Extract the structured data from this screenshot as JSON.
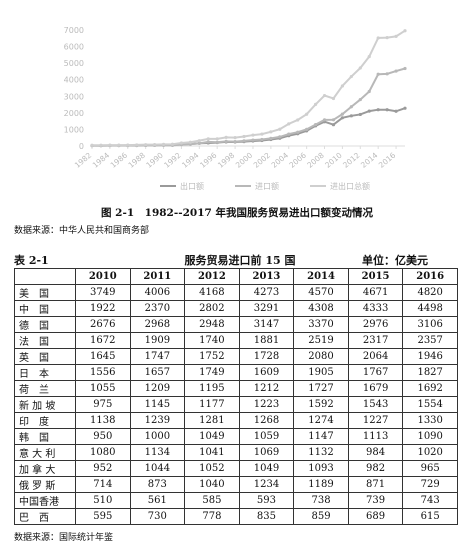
{
  "chart_data": {
    "type": "line",
    "x": [
      1982,
      1983,
      1984,
      1985,
      1986,
      1987,
      1988,
      1989,
      1990,
      1991,
      1992,
      1993,
      1994,
      1995,
      1996,
      1997,
      1998,
      1999,
      2000,
      2001,
      2002,
      2003,
      2004,
      2005,
      2006,
      2007,
      2008,
      2009,
      2010,
      2011,
      2012,
      2013,
      2014,
      2015,
      2016,
      2017
    ],
    "series": [
      {
        "name": "出口额",
        "color": "#9a9a9a",
        "values": [
          25,
          25,
          28,
          29,
          36,
          42,
          47,
          45,
          57,
          69,
          91,
          110,
          164,
          184,
          206,
          245,
          239,
          262,
          301,
          329,
          394,
          464,
          621,
          739,
          914,
          1217,
          1465,
          1286,
          1702,
          1821,
          1904,
          2106,
          2191,
          2186,
          2095,
          2281
        ]
      },
      {
        "name": "进口额",
        "color": "#b8b8b8",
        "values": [
          19,
          18,
          26,
          23,
          20,
          23,
          33,
          36,
          41,
          39,
          92,
          116,
          158,
          246,
          224,
          277,
          265,
          310,
          359,
          390,
          461,
          549,
          716,
          832,
          1003,
          1293,
          1580,
          1581,
          1922,
          2370,
          2801,
          3291,
          4329,
          4355,
          4521,
          4676
        ]
      },
      {
        "name": "进出口总额",
        "color": "#cfcfcf",
        "values": [
          44,
          43,
          54,
          52,
          56,
          65,
          80,
          81,
          98,
          108,
          183,
          226,
          322,
          430,
          430,
          522,
          504,
          572,
          660,
          719,
          855,
          1013,
          1337,
          1571,
          1917,
          2510,
          3045,
          2867,
          3624,
          4191,
          4705,
          5397,
          6520,
          6541,
          6616,
          6957
        ]
      }
    ],
    "xlim": [
      1982,
      2017
    ],
    "xticks": [
      1982,
      1984,
      1986,
      1988,
      1990,
      1992,
      1994,
      1996,
      1998,
      2000,
      2002,
      2004,
      2006,
      2008,
      2010,
      2012,
      2014,
      2016
    ],
    "ylim": [
      0,
      7000
    ],
    "yticks": [
      0,
      1000,
      2000,
      3000,
      4000,
      5000,
      6000,
      7000
    ],
    "grid": false,
    "legend": "bottom"
  },
  "caption": "图 2-1　1982--2017 年我国服务贸易进出口额变动情况",
  "chart_source": "数据来源：中华人民共和国商务部",
  "table": {
    "number": "表 2-1",
    "title": "服务贸易进口前 15 国",
    "unit": "单位：亿美元",
    "header": [
      2010,
      2011,
      2012,
      2013,
      2014,
      2015,
      2016
    ],
    "rows": [
      [
        "美　国",
        3749,
        4006,
        4168,
        4273,
        4570,
        4671,
        4820
      ],
      [
        "中　国",
        1922,
        2370,
        2802,
        3291,
        4308,
        4333,
        4498
      ],
      [
        "德　国",
        2676,
        2968,
        2948,
        3147,
        3370,
        2976,
        3106
      ],
      [
        "法　国",
        1672,
        1909,
        1740,
        1881,
        2519,
        2317,
        2357
      ],
      [
        "英　国",
        1645,
        1747,
        1752,
        1728,
        2080,
        2064,
        1946
      ],
      [
        "日　本",
        1556,
        1657,
        1749,
        1609,
        1905,
        1767,
        1827
      ],
      [
        "荷　兰",
        1055,
        1209,
        1195,
        1212,
        1727,
        1679,
        1692
      ],
      [
        "新 加 坡",
        975,
        1145,
        1177,
        1223,
        1592,
        1543,
        1554
      ],
      [
        "印　度",
        1138,
        1239,
        1281,
        1268,
        1274,
        1227,
        1330
      ],
      [
        "韩　国",
        950,
        1000,
        1049,
        1059,
        1147,
        1113,
        1090
      ],
      [
        "意 大 利",
        1080,
        1134,
        1041,
        1069,
        1132,
        984,
        1020
      ],
      [
        "加 拿 大",
        952,
        1044,
        1052,
        1049,
        1093,
        982,
        965
      ],
      [
        "俄 罗 斯",
        714,
        873,
        1040,
        1234,
        1189,
        871,
        729
      ],
      [
        "中国香港",
        510,
        561,
        585,
        593,
        738,
        739,
        743
      ],
      [
        "巴　西",
        595,
        730,
        778,
        835,
        859,
        689,
        615
      ]
    ]
  },
  "table_source": "数据来源：国际统计年鉴"
}
